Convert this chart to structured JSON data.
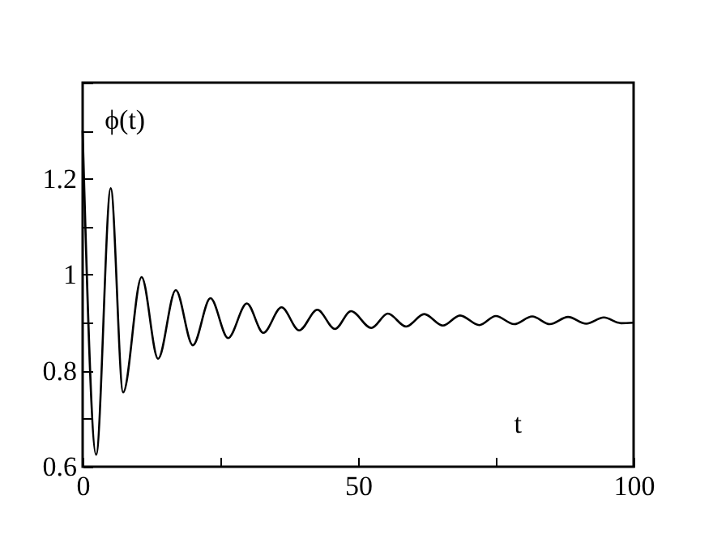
{
  "chart_data": {
    "type": "line",
    "xlabel": "t",
    "ylabel": "ϕ(t)",
    "xlim": [
      0,
      100
    ],
    "ylim": [
      0.6,
      1.4
    ],
    "xticks": [
      0,
      {
        "value": 25,
        "label": null
      },
      50,
      {
        "value": 75,
        "label": null
      },
      100
    ],
    "yticks": [
      0.6,
      {
        "value": 0.7,
        "label": null
      },
      0.8,
      {
        "value": 0.9,
        "label": null
      },
      1,
      {
        "value": 1.1,
        "label": null
      },
      1.2,
      {
        "value": 1.3,
        "label": null
      },
      {
        "value": 1.4,
        "label": null
      }
    ],
    "grid": false,
    "marker": "none",
    "line_style": "solid",
    "series": [
      {
        "color": "#000000",
        "x": [
          0,
          2.45,
          5.1,
          7.35,
          10.7,
          13.7,
          16.9,
          20,
          23.2,
          26.4,
          29.8,
          32.8,
          36.1,
          39.3,
          42.6,
          45.8,
          48.7,
          52.4,
          55.4,
          58.7,
          62,
          65.4,
          68.5,
          72,
          75,
          78.3,
          81.6,
          84.8,
          88.1,
          91.4,
          94.6,
          97.7,
          100
        ],
        "values": [
          1.3,
          0.625,
          1.18,
          0.755,
          0.995,
          0.825,
          0.968,
          0.853,
          0.951,
          0.868,
          0.94,
          0.879,
          0.932,
          0.884,
          0.927,
          0.887,
          0.924,
          0.889,
          0.919,
          0.892,
          0.918,
          0.894,
          0.915,
          0.895,
          0.914,
          0.897,
          0.913,
          0.897,
          0.912,
          0.898,
          0.911,
          0.899,
          0.9
        ]
      }
    ]
  }
}
